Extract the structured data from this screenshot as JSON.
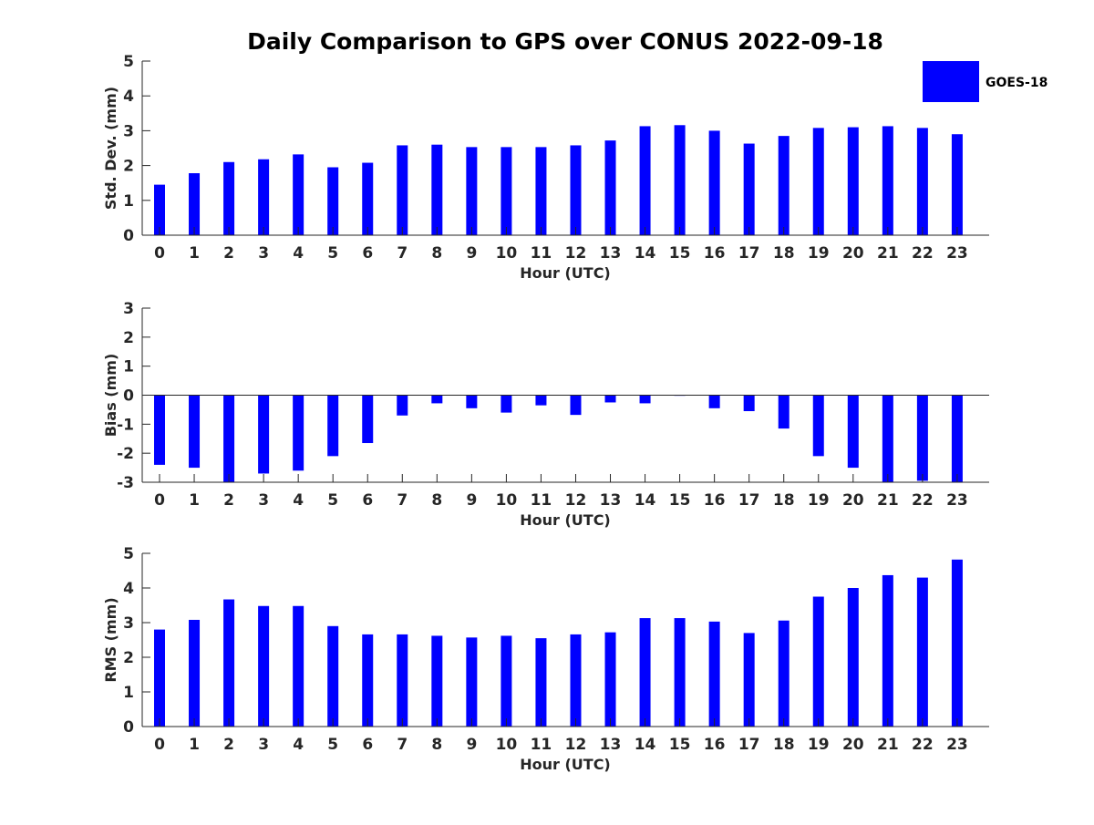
{
  "title": "Daily Comparison to GPS over CONUS 2022-09-18",
  "legend": {
    "label": "GOES-18",
    "color": "#0000ff",
    "placement": "top-right"
  },
  "chart_data": [
    {
      "type": "bar",
      "title": "Daily Comparison to GPS over CONUS 2022-09-18",
      "xlabel": "Hour (UTC)",
      "ylabel": "Std. Dev. (mm)",
      "categories": [
        "0",
        "1",
        "2",
        "3",
        "4",
        "5",
        "6",
        "7",
        "8",
        "9",
        "10",
        "11",
        "12",
        "13",
        "14",
        "15",
        "16",
        "17",
        "18",
        "19",
        "20",
        "21",
        "22",
        "23"
      ],
      "series": [
        {
          "name": "GOES-18",
          "values": [
            1.45,
            1.78,
            2.1,
            2.18,
            2.32,
            1.95,
            2.08,
            2.58,
            2.6,
            2.53,
            2.53,
            2.53,
            2.58,
            2.72,
            3.13,
            3.16,
            3.0,
            2.63,
            2.85,
            3.08,
            3.1,
            3.13,
            3.08,
            2.9
          ]
        }
      ],
      "ylim": [
        0,
        5
      ],
      "yticks": [
        "0",
        "1",
        "2",
        "3",
        "4",
        "5"
      ],
      "grid": false,
      "color": "#0000ff"
    },
    {
      "type": "bar",
      "xlabel": "Hour (UTC)",
      "ylabel": "Bias (mm)",
      "categories": [
        "0",
        "1",
        "2",
        "3",
        "4",
        "5",
        "6",
        "7",
        "8",
        "9",
        "10",
        "11",
        "12",
        "13",
        "14",
        "15",
        "16",
        "17",
        "18",
        "19",
        "20",
        "21",
        "22",
        "23"
      ],
      "series": [
        {
          "name": "GOES-18",
          "values": [
            -2.4,
            -2.5,
            -3.0,
            -2.7,
            -2.6,
            -2.1,
            -1.65,
            -0.7,
            -0.28,
            -0.45,
            -0.6,
            -0.35,
            -0.68,
            -0.25,
            -0.28,
            -0.02,
            -0.45,
            -0.55,
            -1.15,
            -2.1,
            -2.5,
            -3.0,
            -2.95,
            -3.0
          ]
        }
      ],
      "ylim": [
        -3,
        3
      ],
      "yticks": [
        "-3",
        "-2",
        "-1",
        "0",
        "1",
        "2",
        "3"
      ],
      "grid": false,
      "color": "#0000ff"
    },
    {
      "type": "bar",
      "xlabel": "Hour (UTC)",
      "ylabel": "RMS (mm)",
      "categories": [
        "0",
        "1",
        "2",
        "3",
        "4",
        "5",
        "6",
        "7",
        "8",
        "9",
        "10",
        "11",
        "12",
        "13",
        "14",
        "15",
        "16",
        "17",
        "18",
        "19",
        "20",
        "21",
        "22",
        "23"
      ],
      "series": [
        {
          "name": "GOES-18",
          "values": [
            2.8,
            3.08,
            3.67,
            3.48,
            3.48,
            2.9,
            2.66,
            2.66,
            2.62,
            2.57,
            2.62,
            2.55,
            2.66,
            2.72,
            3.13,
            3.13,
            3.03,
            2.7,
            3.06,
            3.75,
            4.0,
            4.37,
            4.3,
            4.82
          ]
        }
      ],
      "ylim": [
        0,
        5
      ],
      "yticks": [
        "0",
        "1",
        "2",
        "3",
        "4",
        "5"
      ],
      "grid": false,
      "color": "#0000ff"
    }
  ]
}
